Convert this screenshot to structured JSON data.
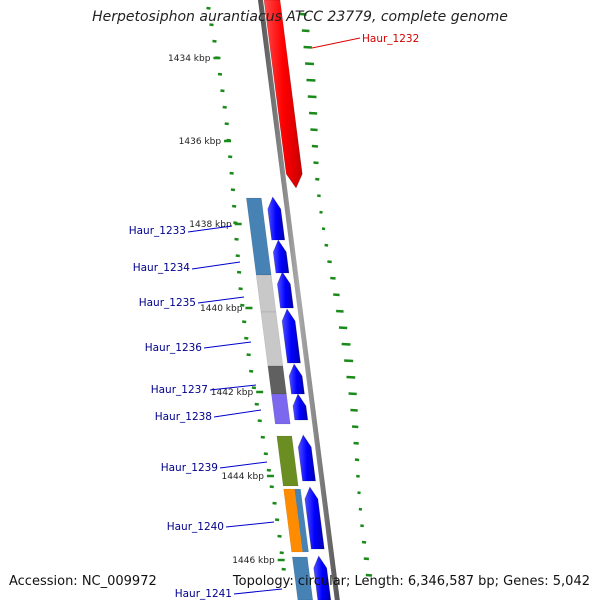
{
  "title": "Herpetosiphon aurantiacus ATCC 23779, complete genome",
  "accession": "Accession: NC_009972",
  "topology": "Topology: circular; Length: 6,346,587 bp; Genes: 5,042",
  "ticks": [
    "1434 kbp",
    "1436 kbp",
    "1438 kbp",
    "1440 kbp",
    "1442 kbp",
    "1444 kbp",
    "1446 kbp"
  ],
  "genes": [
    {
      "label": "Haur_1232",
      "color": "#d40000"
    },
    {
      "label": "Haur_1233",
      "color": "#00008b"
    },
    {
      "label": "Haur_1234",
      "color": "#00008b"
    },
    {
      "label": "Haur_1235",
      "color": "#00008b"
    },
    {
      "label": "Haur_1236",
      "color": "#00008b"
    },
    {
      "label": "Haur_1237",
      "color": "#00008b"
    },
    {
      "label": "Haur_1238",
      "color": "#00008b"
    },
    {
      "label": "Haur_1239",
      "color": "#00008b"
    },
    {
      "label": "Haur_1240",
      "color": "#00008b"
    },
    {
      "label": "Haur_1241",
      "color": "#00008b"
    }
  ],
  "colors": {
    "backbone": "#808080",
    "gc_skew": "#1a8a1a",
    "forward_gene": "#ff0000",
    "reverse_gene": "#0000ff",
    "cog_blue": "#4682b4",
    "cog_lightgray": "#c8c8c8",
    "cog_darkgray": "#606060",
    "cog_purple": "#7b68ee",
    "cog_olive": "#6b8e23",
    "cog_orange": "#ff8c00"
  }
}
